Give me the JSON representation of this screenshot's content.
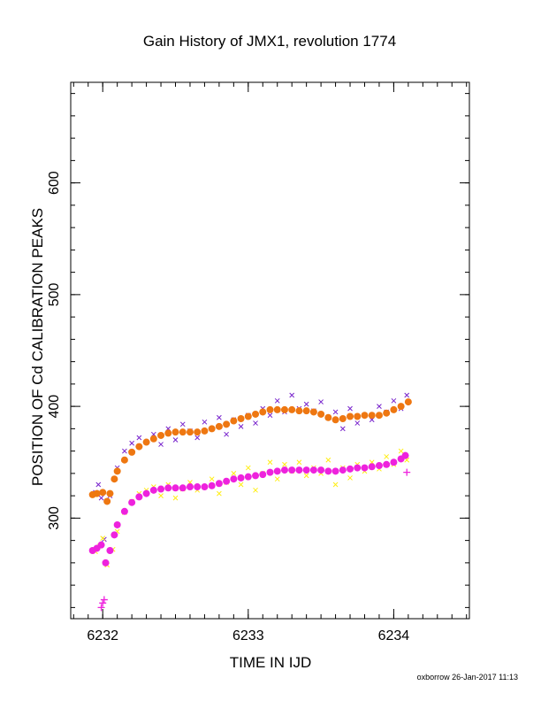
{
  "chart_data": {
    "type": "scatter",
    "title": "Gain History of JMX1, revolution 1774",
    "xlabel": "TIME IN IJD",
    "ylabel": "POSITION OF Cd CALIBRATION PEAKS",
    "xlim": [
      6231.78,
      6234.52
    ],
    "ylim": [
      210,
      690
    ],
    "xticks": [
      6232,
      6233,
      6234
    ],
    "yticks": [
      300,
      400,
      500,
      600
    ],
    "grid": false,
    "series": [
      {
        "color": "#7722cc",
        "marker": "x",
        "x": [
          6231.95,
          6231.97,
          6231.99,
          6232.01,
          6232.05,
          6232.1,
          6232.15,
          6232.2,
          6232.25,
          6232.3,
          6232.35,
          6232.4,
          6232.45,
          6232.5,
          6232.55,
          6232.6,
          6232.65,
          6232.7,
          6232.75,
          6232.8,
          6232.85,
          6232.9,
          6232.95,
          6233.0,
          6233.05,
          6233.1,
          6233.15,
          6233.2,
          6233.25,
          6233.3,
          6233.35,
          6233.4,
          6233.45,
          6233.5,
          6233.55,
          6233.6,
          6233.65,
          6233.7,
          6233.75,
          6233.8,
          6233.85,
          6233.9,
          6233.95,
          6234.0,
          6234.05,
          6234.09
        ],
        "y": [
          323,
          330,
          318,
          281,
          320,
          345,
          360,
          367,
          372,
          368,
          375,
          366,
          380,
          370,
          384,
          378,
          372,
          386,
          380,
          390,
          375,
          388,
          382,
          392,
          385,
          398,
          392,
          405,
          395,
          410,
          398,
          402,
          396,
          404,
          390,
          395,
          380,
          398,
          385,
          392,
          388,
          400,
          395,
          405,
          398,
          410
        ]
      },
      {
        "color": "#ee7711",
        "marker": "dot",
        "x": [
          6231.93,
          6231.96,
          6232.0,
          6232.03,
          6232.05,
          6232.08,
          6232.1,
          6232.15,
          6232.2,
          6232.25,
          6232.3,
          6232.35,
          6232.4,
          6232.45,
          6232.5,
          6232.55,
          6232.6,
          6232.65,
          6232.7,
          6232.75,
          6232.8,
          6232.85,
          6232.9,
          6232.95,
          6233.0,
          6233.05,
          6233.1,
          6233.15,
          6233.2,
          6233.25,
          6233.3,
          6233.35,
          6233.4,
          6233.45,
          6233.5,
          6233.55,
          6233.6,
          6233.65,
          6233.7,
          6233.75,
          6233.8,
          6233.85,
          6233.9,
          6233.95,
          6234.0,
          6234.05,
          6234.1
        ],
        "y": [
          321,
          322,
          323,
          315,
          322,
          335,
          342,
          352,
          359,
          364,
          368,
          371,
          374,
          376,
          377,
          377,
          377,
          377,
          378,
          380,
          382,
          384,
          387,
          389,
          391,
          393,
          395,
          397,
          397,
          397,
          397,
          396,
          396,
          395,
          393,
          390,
          388,
          389,
          391,
          391,
          392,
          392,
          392,
          394,
          397,
          400,
          404
        ]
      },
      {
        "color": "#ffee11",
        "marker": "x",
        "x": [
          6231.95,
          6231.98,
          6232.0,
          6232.03,
          6232.07,
          6232.1,
          6232.15,
          6232.2,
          6232.25,
          6232.3,
          6232.35,
          6232.4,
          6232.45,
          6232.5,
          6232.55,
          6232.6,
          6232.65,
          6232.7,
          6232.75,
          6232.8,
          6232.85,
          6232.9,
          6232.95,
          6233.0,
          6233.05,
          6233.1,
          6233.15,
          6233.2,
          6233.25,
          6233.3,
          6233.35,
          6233.4,
          6233.45,
          6233.5,
          6233.55,
          6233.6,
          6233.65,
          6233.7,
          6233.75,
          6233.8,
          6233.85,
          6233.9,
          6233.95,
          6234.0,
          6234.05,
          6234.09
        ],
        "y": [
          270,
          275,
          282,
          258,
          272,
          288,
          305,
          315,
          322,
          325,
          328,
          320,
          330,
          318,
          326,
          332,
          325,
          328,
          335,
          322,
          332,
          340,
          330,
          345,
          325,
          340,
          350,
          335,
          348,
          342,
          350,
          338,
          345,
          340,
          352,
          330,
          345,
          336,
          348,
          342,
          350,
          344,
          355,
          348,
          360,
          352
        ]
      },
      {
        "color": "#ee22dd",
        "marker": "dot",
        "x": [
          6231.93,
          6231.96,
          6231.99,
          6232.02,
          6232.05,
          6232.08,
          6232.1,
          6232.15,
          6232.2,
          6232.25,
          6232.3,
          6232.35,
          6232.4,
          6232.45,
          6232.5,
          6232.55,
          6232.6,
          6232.65,
          6232.7,
          6232.75,
          6232.8,
          6232.85,
          6232.9,
          6232.95,
          6233.0,
          6233.05,
          6233.1,
          6233.15,
          6233.2,
          6233.25,
          6233.3,
          6233.35,
          6233.4,
          6233.45,
          6233.5,
          6233.55,
          6233.6,
          6233.65,
          6233.7,
          6233.75,
          6233.8,
          6233.85,
          6233.9,
          6233.95,
          6234.0,
          6234.05,
          6234.08
        ],
        "y": [
          271,
          273,
          276,
          260,
          271,
          285,
          294,
          306,
          314,
          319,
          322,
          325,
          326,
          327,
          327,
          327,
          328,
          328,
          328,
          329,
          331,
          333,
          335,
          336,
          337,
          338,
          339,
          341,
          342,
          343,
          343,
          343,
          343,
          343,
          343,
          342,
          342,
          343,
          344,
          345,
          345,
          346,
          347,
          348,
          350,
          353,
          356
        ]
      },
      {
        "color": "#ee22dd",
        "marker": "plus",
        "x": [
          6231.99,
          6232.0,
          6232.01,
          6234.09
        ],
        "y": [
          220,
          224,
          227,
          341
        ]
      }
    ]
  },
  "footer": "oxborrow 26-Jan-2017 11:13"
}
